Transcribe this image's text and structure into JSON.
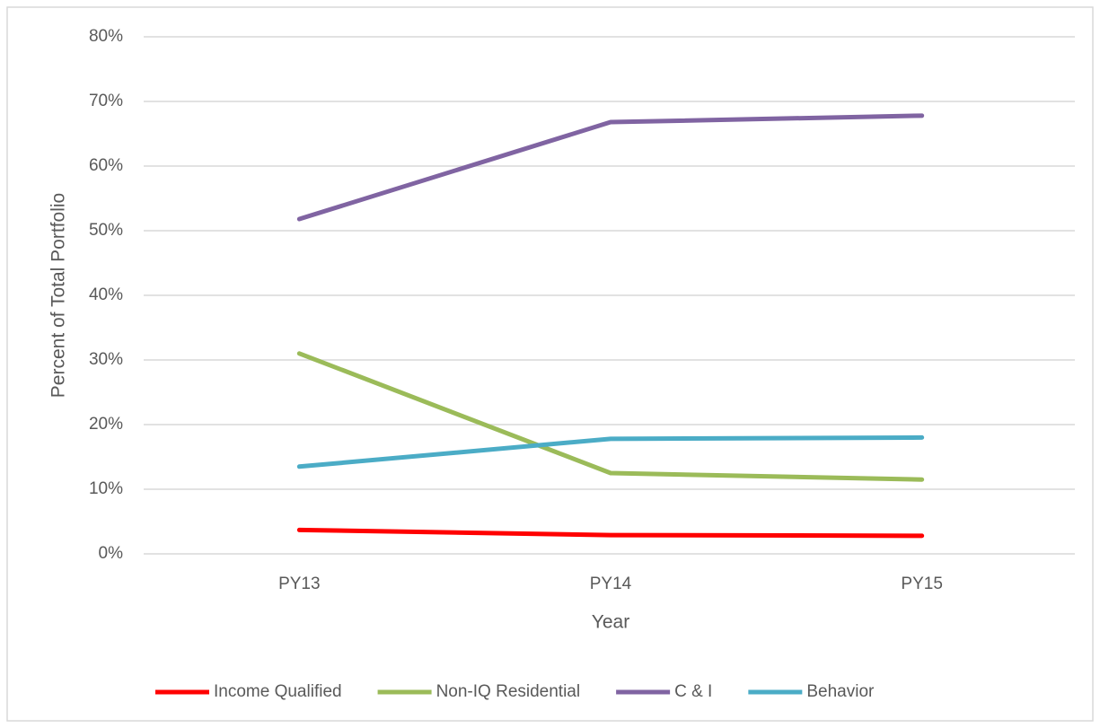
{
  "chart_data": {
    "type": "line",
    "x_label": "Year",
    "y_label": "Percent of Total Portfolio",
    "categories": [
      "PY13",
      "PY14",
      "PY15"
    ],
    "series": [
      {
        "name": "Income Qualified",
        "color": "#ff0000",
        "values": [
          3.7,
          2.9,
          2.8
        ]
      },
      {
        "name": "Non-IQ Residential",
        "color": "#9bbb59",
        "values": [
          31,
          12.5,
          11.5
        ]
      },
      {
        "name": "C & I",
        "color": "#8064a2",
        "values": [
          51.8,
          66.8,
          67.8
        ]
      },
      {
        "name": "Behavior",
        "color": "#4bacc6",
        "values": [
          13.5,
          17.8,
          18.0
        ]
      }
    ],
    "ylim": [
      0,
      80
    ],
    "yticks": [
      {
        "value": 0,
        "label": "0%"
      },
      {
        "value": 10,
        "label": "10%"
      },
      {
        "value": 20,
        "label": "20%"
      },
      {
        "value": 30,
        "label": "30%"
      },
      {
        "value": 40,
        "label": "40%"
      },
      {
        "value": 50,
        "label": "50%"
      },
      {
        "value": 60,
        "label": "60%"
      },
      {
        "value": 70,
        "label": "70%"
      },
      {
        "value": 80,
        "label": "80%"
      }
    ],
    "grid": true,
    "legend": "bottom"
  }
}
